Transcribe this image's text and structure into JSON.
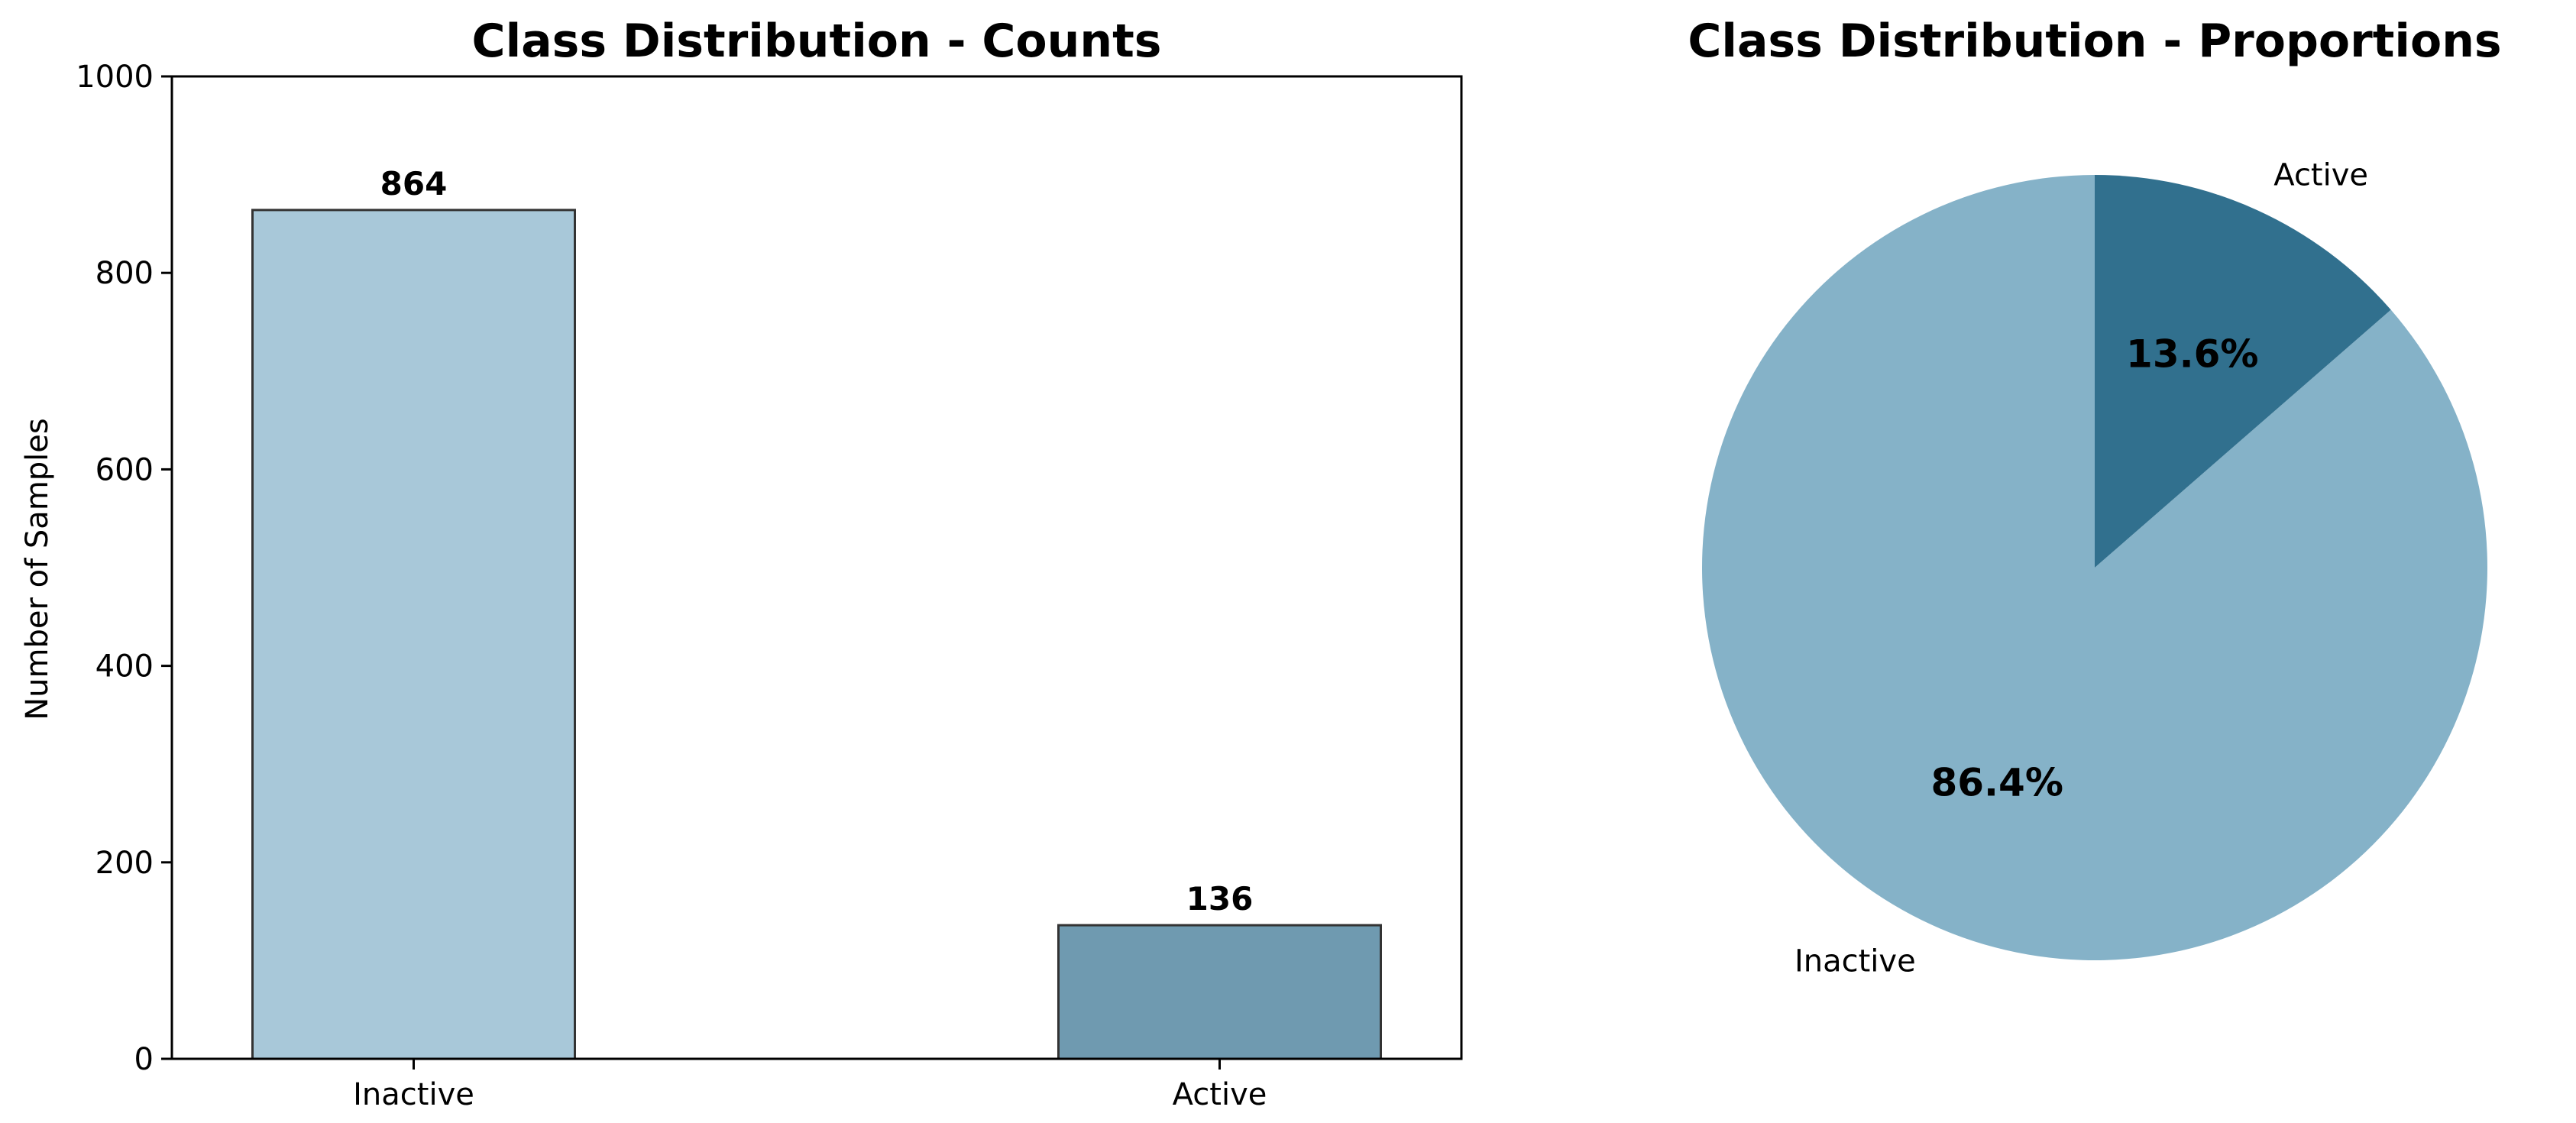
{
  "chart_data": [
    {
      "type": "bar",
      "title": "Class Distribution - Counts",
      "xlabel": "",
      "ylabel": "Number of Samples",
      "categories": [
        "Inactive",
        "Active"
      ],
      "values": [
        864,
        136
      ],
      "value_labels": [
        "864",
        "136"
      ],
      "ylim": [
        0,
        1000
      ],
      "yticks": [
        0,
        200,
        400,
        600,
        800,
        1000
      ],
      "ytick_labels": [
        "0",
        "200",
        "400",
        "600",
        "800",
        "1000"
      ],
      "colors": [
        "#a8c8d9",
        "#6f9ab0"
      ],
      "edge_color": "#333333",
      "grid": false
    },
    {
      "type": "pie",
      "title": "Class Distribution - Proportions",
      "labels": [
        "Inactive",
        "Active"
      ],
      "values": [
        86.4,
        13.6
      ],
      "pct_labels": [
        "86.4%",
        "13.6%"
      ],
      "colors": [
        "#85b2c8",
        "#31708e"
      ]
    }
  ]
}
